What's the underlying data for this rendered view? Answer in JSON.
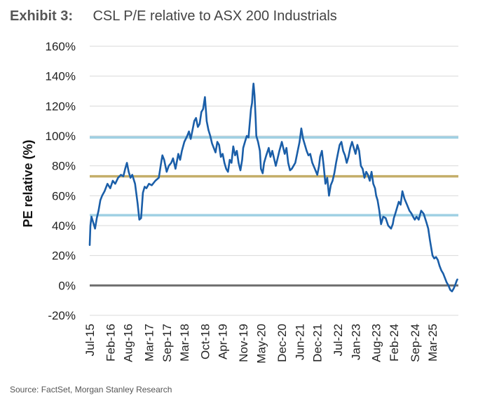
{
  "header": {
    "exhibit": "Exhibit 3:",
    "title": "CSL P/E relative to ASX 200 Industrials"
  },
  "source": "Source: FactSet, Morgan Stanley Research",
  "colors": {
    "series": "#1a5ea8",
    "band_upper": "#9fd0e3",
    "band_lower": "#9fd0e3",
    "average": "#c4ae6a",
    "zero": "#6e6e6e",
    "grid": "#d9d9d9"
  },
  "chart_data": {
    "type": "line",
    "title": "CSL P/E relative to ASX 200 Industrials",
    "xlabel": "",
    "ylabel": "PE relative (%)",
    "ylim": [
      -20,
      160
    ],
    "yticks": [
      -20,
      0,
      20,
      40,
      60,
      80,
      100,
      120,
      140,
      160
    ],
    "ytick_labels": [
      "-20%",
      "0%",
      "20%",
      "40%",
      "60%",
      "80%",
      "100%",
      "120%",
      "140%",
      "160%"
    ],
    "x_range": [
      2015.5,
      2025.9
    ],
    "xtick_labels": [
      "Jul-15",
      "Feb-16",
      "Aug-16",
      "Mar-17",
      "Sep-17",
      "Mar-18",
      "Oct-18",
      "Apr-19",
      "Nov-19",
      "May-20",
      "Dec-20",
      "Jun-21",
      "Dec-21",
      "Jul-22",
      "Jan-23",
      "Aug-23",
      "Feb-24",
      "Sep-24",
      "Mar-25"
    ],
    "xtick_positions": [
      2015.5,
      2016.08,
      2016.58,
      2017.17,
      2017.67,
      2018.17,
      2018.75,
      2019.25,
      2019.83,
      2020.33,
      2020.92,
      2021.42,
      2021.92,
      2022.5,
      2023.0,
      2023.58,
      2024.08,
      2024.67,
      2025.17
    ],
    "reference_lines": [
      {
        "name": "+1 std dev",
        "y": 99
      },
      {
        "name": "average",
        "y": 73
      },
      {
        "name": "-1 std dev",
        "y": 47
      },
      {
        "name": "zero",
        "y": 0
      }
    ],
    "series": [
      {
        "name": "CSL P/E relative to ASX 200 Industrials",
        "x": [
          2015.5,
          2015.52,
          2015.55,
          2015.6,
          2015.65,
          2015.7,
          2015.75,
          2015.8,
          2015.85,
          2015.92,
          2016.0,
          2016.08,
          2016.15,
          2016.22,
          2016.3,
          2016.38,
          2016.45,
          2016.5,
          2016.55,
          2016.6,
          2016.65,
          2016.7,
          2016.78,
          2016.85,
          2016.9,
          2016.95,
          2017.0,
          2017.05,
          2017.1,
          2017.17,
          2017.25,
          2017.35,
          2017.45,
          2017.5,
          2017.55,
          2017.6,
          2017.67,
          2017.73,
          2017.8,
          2017.85,
          2017.92,
          2018.0,
          2018.05,
          2018.1,
          2018.17,
          2018.25,
          2018.3,
          2018.35,
          2018.4,
          2018.45,
          2018.5,
          2018.55,
          2018.6,
          2018.65,
          2018.7,
          2018.75,
          2018.8,
          2018.85,
          2018.9,
          2018.95,
          2019.0,
          2019.05,
          2019.1,
          2019.15,
          2019.2,
          2019.25,
          2019.3,
          2019.35,
          2019.4,
          2019.45,
          2019.5,
          2019.55,
          2019.6,
          2019.65,
          2019.7,
          2019.75,
          2019.8,
          2019.83,
          2019.88,
          2019.93,
          2019.98,
          2020.02,
          2020.05,
          2020.08,
          2020.1,
          2020.12,
          2020.15,
          2020.18,
          2020.2,
          2020.25,
          2020.3,
          2020.33,
          2020.38,
          2020.42,
          2020.48,
          2020.55,
          2020.6,
          2020.65,
          2020.7,
          2020.75,
          2020.8,
          2020.85,
          2020.92,
          2021.0,
          2021.05,
          2021.1,
          2021.15,
          2021.2,
          2021.25,
          2021.3,
          2021.35,
          2021.42,
          2021.47,
          2021.52,
          2021.57,
          2021.62,
          2021.67,
          2021.72,
          2021.78,
          2021.85,
          2021.92,
          2021.97,
          2022.0,
          2022.05,
          2022.1,
          2022.15,
          2022.2,
          2022.25,
          2022.3,
          2022.35,
          2022.4,
          2022.45,
          2022.5,
          2022.55,
          2022.6,
          2022.65,
          2022.7,
          2022.75,
          2022.8,
          2022.85,
          2022.9,
          2022.95,
          2023.0,
          2023.05,
          2023.1,
          2023.15,
          2023.2,
          2023.25,
          2023.3,
          2023.35,
          2023.4,
          2023.45,
          2023.5,
          2023.55,
          2023.58,
          2023.62,
          2023.67,
          2023.72,
          2023.78,
          2023.85,
          2023.92,
          2024.0,
          2024.05,
          2024.08,
          2024.12,
          2024.17,
          2024.22,
          2024.27,
          2024.32,
          2024.38,
          2024.45,
          2024.52,
          2024.58,
          2024.62,
          2024.67,
          2024.72,
          2024.78,
          2024.85,
          2024.92,
          2025.0,
          2025.05,
          2025.1,
          2025.17,
          2025.22,
          2025.27,
          2025.32,
          2025.37,
          2025.42,
          2025.47,
          2025.52,
          2025.57,
          2025.62,
          2025.67,
          2025.72,
          2025.77,
          2025.82,
          2025.85,
          2025.87
        ],
        "values": [
          27,
          40,
          46,
          42,
          38,
          45,
          50,
          57,
          60,
          63,
          68,
          65,
          70,
          68,
          72,
          74,
          73,
          78,
          82,
          76,
          72,
          74,
          68,
          55,
          44,
          45,
          62,
          66,
          65,
          68,
          67,
          70,
          72,
          80,
          87,
          84,
          76,
          80,
          82,
          85,
          78,
          88,
          84,
          90,
          96,
          100,
          103,
          98,
          104,
          110,
          112,
          106,
          108,
          116,
          118,
          126,
          110,
          104,
          100,
          95,
          92,
          89,
          96,
          94,
          86,
          88,
          82,
          78,
          76,
          84,
          82,
          93,
          87,
          90,
          82,
          77,
          84,
          92,
          96,
          100,
          99,
          110,
          118,
          122,
          130,
          135,
          127,
          112,
          100,
          96,
          90,
          78,
          75,
          82,
          87,
          92,
          86,
          90,
          85,
          80,
          85,
          90,
          96,
          88,
          92,
          82,
          77,
          78,
          80,
          82,
          88,
          96,
          105,
          98,
          94,
          90,
          87,
          88,
          82,
          78,
          74,
          80,
          86,
          90,
          80,
          68,
          72,
          60,
          67,
          70,
          75,
          82,
          88,
          94,
          96,
          90,
          87,
          82,
          86,
          92,
          96,
          92,
          88,
          94,
          90,
          80,
          78,
          72,
          76,
          74,
          70,
          76,
          68,
          65,
          60,
          57,
          50,
          41,
          46,
          45,
          40,
          38,
          41,
          45,
          48,
          52,
          56,
          54,
          63,
          58,
          54,
          50,
          48,
          46,
          44,
          46,
          44,
          50,
          48,
          42,
          38,
          30,
          20,
          18,
          19,
          17,
          13,
          10,
          8,
          5,
          2,
          0,
          -3,
          -4,
          -2,
          1,
          3,
          4
        ]
      }
    ]
  }
}
